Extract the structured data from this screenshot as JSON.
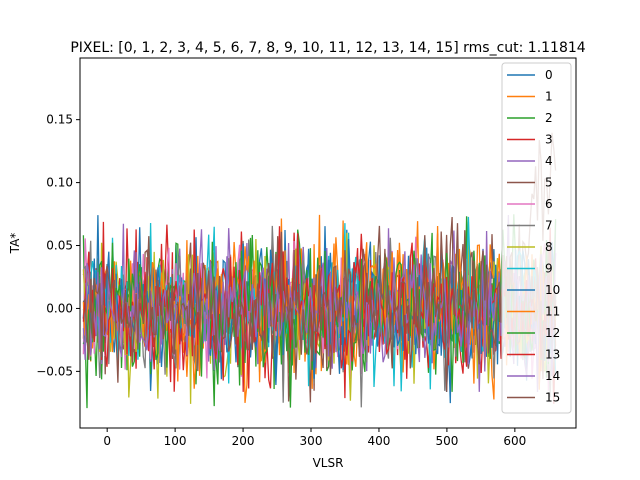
{
  "chart_data": {
    "type": "line",
    "title": "PIXEL: [0, 1, 2, 3, 4, 5, 6, 7, 8, 9, 10, 11, 12, 13, 14, 15]   rms_cut: 1.11814",
    "xlabel": "VLSR",
    "ylabel": "TA*",
    "xlim": [
      -40,
      690
    ],
    "ylim": [
      -0.095,
      0.199
    ],
    "xticks": [
      0,
      100,
      200,
      300,
      400,
      500,
      600
    ],
    "yticks": [
      -0.05,
      0.0,
      0.05,
      0.1,
      0.15
    ],
    "ytick_labels": [
      "−0.05",
      "0.00",
      "0.05",
      "0.10",
      "0.15"
    ],
    "grid": false,
    "legend_position": "top-right",
    "x_range_of_data": [
      -35,
      660
    ],
    "noise_rms": 0.025,
    "series": [
      {
        "name": "0",
        "color": "#1f77b4"
      },
      {
        "name": "1",
        "color": "#ff7f0e"
      },
      {
        "name": "2",
        "color": "#2ca02c"
      },
      {
        "name": "3",
        "color": "#d62728"
      },
      {
        "name": "4",
        "color": "#9467bd"
      },
      {
        "name": "5",
        "color": "#8c564b"
      },
      {
        "name": "6",
        "color": "#e377c2"
      },
      {
        "name": "7",
        "color": "#7f7f7f"
      },
      {
        "name": "8",
        "color": "#bcbd22"
      },
      {
        "name": "9",
        "color": "#17becf"
      },
      {
        "name": "10",
        "color": "#1f77b4"
      },
      {
        "name": "11",
        "color": "#ff7f0e"
      },
      {
        "name": "12",
        "color": "#2ca02c"
      },
      {
        "name": "13",
        "color": "#d62728"
      },
      {
        "name": "14",
        "color": "#9467bd"
      },
      {
        "name": "15",
        "color": "#8c564b"
      }
    ],
    "annotations": [
      {
        "series": "5",
        "x_range": [
          610,
          660
        ],
        "description": "rising spike feature up to ~0.17"
      }
    ]
  }
}
